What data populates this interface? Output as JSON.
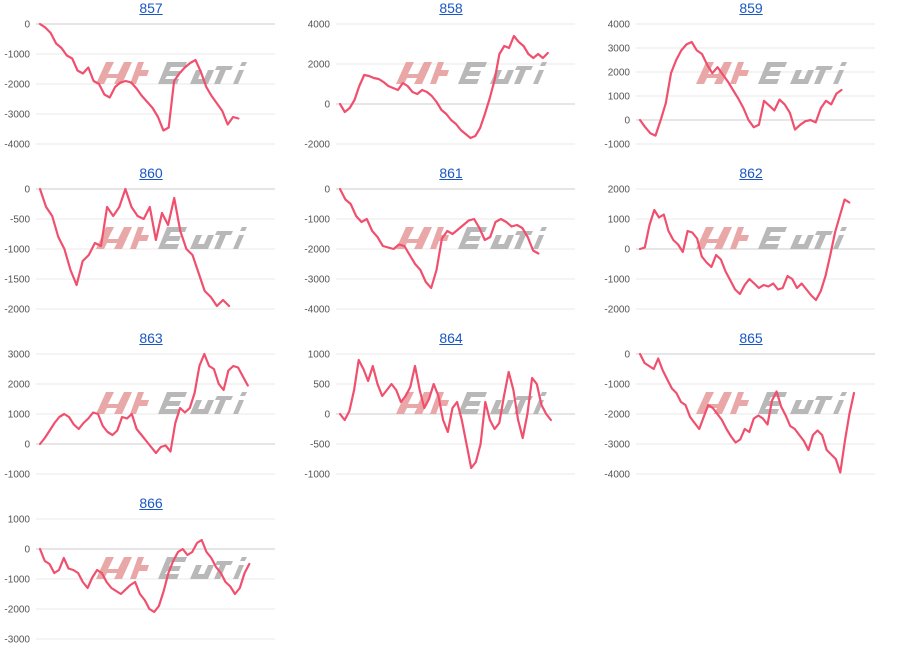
{
  "chart_data": [
    {
      "type": "line",
      "title": "857",
      "ylim": [
        -4000,
        0
      ],
      "yticks": [
        0,
        -1000,
        -2000,
        -3000,
        -4000
      ],
      "values": [
        0,
        -120,
        -300,
        -650,
        -800,
        -1050,
        -1150,
        -1550,
        -1650,
        -1450,
        -1900,
        -2000,
        -2350,
        -2450,
        -2100,
        -1950,
        -1900,
        -1950,
        -2150,
        -2400,
        -2600,
        -2800,
        -3100,
        -3550,
        -3450,
        -1900,
        -1650,
        -1450,
        -1300,
        -1200,
        -1600,
        -2100,
        -2400,
        -2650,
        -2900,
        -3350,
        -3100,
        -3150
      ]
    },
    {
      "type": "line",
      "title": "858",
      "ylim": [
        -2000,
        4000
      ],
      "yticks": [
        4000,
        2000,
        0,
        -2000
      ],
      "values": [
        0,
        -400,
        -200,
        200,
        900,
        1450,
        1400,
        1300,
        1250,
        1100,
        900,
        800,
        700,
        1050,
        900,
        600,
        500,
        700,
        600,
        400,
        100,
        -300,
        -500,
        -800,
        -1000,
        -1300,
        -1500,
        -1700,
        -1600,
        -1200,
        -500,
        300,
        1200,
        2500,
        2900,
        2800,
        3400,
        3100,
        2900,
        2500,
        2300,
        2500,
        2300,
        2550
      ]
    },
    {
      "type": "line",
      "title": "859",
      "ylim": [
        -1000,
        4000
      ],
      "yticks": [
        4000,
        3000,
        2000,
        1000,
        0,
        -1000
      ],
      "values": [
        0,
        -300,
        -550,
        -650,
        0,
        700,
        1950,
        2500,
        2900,
        3150,
        3250,
        2900,
        2750,
        2300,
        1950,
        2200,
        1900,
        1600,
        1250,
        900,
        500,
        0,
        -300,
        -200,
        800,
        600,
        400,
        850,
        650,
        300,
        -400,
        -200,
        -50,
        0,
        -100,
        500,
        800,
        650,
        1100,
        1250
      ]
    },
    {
      "type": "line",
      "title": "860",
      "ylim": [
        -2000,
        0
      ],
      "yticks": [
        0,
        -500,
        -1000,
        -1500,
        -2000
      ],
      "values": [
        0,
        -300,
        -450,
        -800,
        -1000,
        -1350,
        -1600,
        -1200,
        -1100,
        -900,
        -950,
        -300,
        -450,
        -300,
        0,
        -300,
        -450,
        -500,
        -300,
        -850,
        -400,
        -600,
        -150,
        -700,
        -1000,
        -1100,
        -1400,
        -1700,
        -1800,
        -1950,
        -1850,
        -1950
      ]
    },
    {
      "type": "line",
      "title": "861",
      "ylim": [
        -4000,
        0
      ],
      "yticks": [
        0,
        -1000,
        -2000,
        -3000,
        -4000
      ],
      "values": [
        0,
        -350,
        -500,
        -900,
        -1100,
        -1000,
        -1400,
        -1600,
        -1900,
        -1950,
        -2000,
        -1850,
        -1900,
        -2200,
        -2500,
        -2700,
        -3100,
        -3300,
        -2700,
        -1650,
        -1400,
        -1500,
        -1350,
        -1200,
        -1050,
        -1000,
        -1300,
        -1700,
        -1600,
        -1100,
        -1000,
        -1100,
        -1250,
        -1200,
        -1300,
        -1600,
        -2050,
        -2150
      ]
    },
    {
      "type": "line",
      "title": "862",
      "ylim": [
        -2000,
        2000
      ],
      "yticks": [
        2000,
        1000,
        0,
        -1000,
        -2000
      ],
      "values": [
        0,
        50,
        800,
        1300,
        1050,
        1150,
        600,
        300,
        150,
        -100,
        600,
        550,
        350,
        -250,
        -450,
        -600,
        -200,
        -350,
        -750,
        -1050,
        -1350,
        -1500,
        -1200,
        -1000,
        -1150,
        -1300,
        -1200,
        -1250,
        -1150,
        -1350,
        -1300,
        -900,
        -1000,
        -1300,
        -1150,
        -1350,
        -1550,
        -1700,
        -1400,
        -900,
        -200,
        550,
        1100,
        1650,
        1550
      ]
    },
    {
      "type": "line",
      "title": "863",
      "ylim": [
        -1000,
        3000
      ],
      "yticks": [
        3000,
        2000,
        1000,
        0,
        -1000
      ],
      "values": [
        0,
        200,
        450,
        700,
        900,
        1000,
        900,
        650,
        500,
        700,
        850,
        1050,
        1000,
        600,
        400,
        300,
        450,
        900,
        850,
        1000,
        500,
        300,
        100,
        -100,
        -300,
        -100,
        -50,
        -250,
        700,
        1200,
        1050,
        1200,
        1700,
        2600,
        3000,
        2600,
        2500,
        2000,
        1800,
        2450,
        2600,
        2550,
        2250,
        1950
      ]
    },
    {
      "type": "line",
      "title": "864",
      "ylim": [
        -1000,
        1000
      ],
      "yticks": [
        1000,
        500,
        0,
        -500,
        -1000
      ],
      "values": [
        0,
        -100,
        50,
        400,
        900,
        750,
        550,
        800,
        500,
        300,
        400,
        500,
        400,
        200,
        300,
        450,
        800,
        400,
        100,
        250,
        500,
        300,
        -100,
        -300,
        100,
        200,
        -100,
        -500,
        -900,
        -800,
        -500,
        200,
        -100,
        -250,
        -150,
        300,
        700,
        400,
        -100,
        -400,
        0,
        600,
        500,
        150,
        0,
        -100
      ]
    },
    {
      "type": "line",
      "title": "865",
      "ylim": [
        -4000,
        0
      ],
      "yticks": [
        0,
        -1000,
        -2000,
        -3000,
        -4000
      ],
      "values": [
        0,
        -300,
        -400,
        -500,
        -150,
        -550,
        -850,
        -1150,
        -1300,
        -1600,
        -1700,
        -2100,
        -2300,
        -2500,
        -2100,
        -1700,
        -1800,
        -2000,
        -2200,
        -2500,
        -2750,
        -2950,
        -2850,
        -2500,
        -2600,
        -2150,
        -2050,
        -2150,
        -2350,
        -1550,
        -1250,
        -1750,
        -2050,
        -2400,
        -2500,
        -2700,
        -2900,
        -3200,
        -2700,
        -2550,
        -2700,
        -3200,
        -3350,
        -3500,
        -3950,
        -2900,
        -2000,
        -1300
      ]
    },
    {
      "type": "line",
      "title": "866",
      "ylim": [
        -3000,
        1000
      ],
      "yticks": [
        1000,
        0,
        -1000,
        -2000,
        -3000
      ],
      "values": [
        0,
        -400,
        -500,
        -800,
        -700,
        -300,
        -650,
        -700,
        -800,
        -1100,
        -1300,
        -950,
        -700,
        -800,
        -1100,
        -1300,
        -1400,
        -1500,
        -1350,
        -1200,
        -1100,
        -1500,
        -1700,
        -2000,
        -2100,
        -1900,
        -1400,
        -800,
        -400,
        -100,
        0,
        -200,
        -100,
        200,
        300,
        -100,
        -300,
        -600,
        -800,
        -1100,
        -1250,
        -1500,
        -1300,
        -800,
        -500
      ]
    }
  ],
  "colors": {
    "line": "#f0506e",
    "grid": "#e8e8e8",
    "axis": "#cccccc",
    "title": "#1a56c4",
    "tick": "#555555",
    "watermark_red": "#e8a3a3",
    "watermark_gray": "#b5b5b5"
  }
}
